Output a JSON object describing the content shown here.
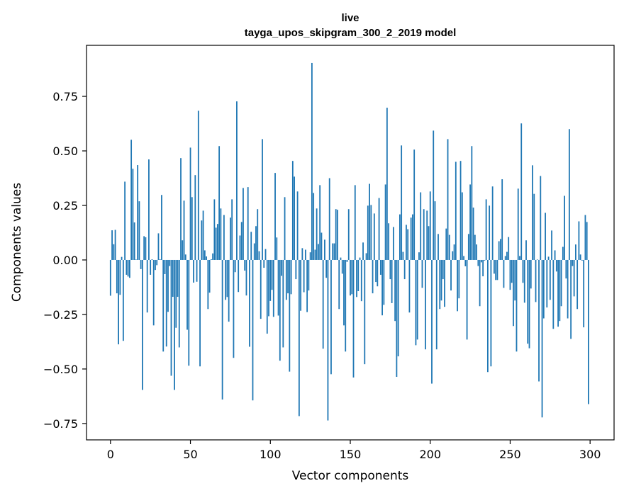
{
  "chart_data": {
    "type": "bar",
    "title": "live",
    "subtitle": "tayga_upos_skipgram_300_2_2019 model",
    "xlabel": "Vector components",
    "ylabel": "Components values",
    "xlim": [
      -15,
      315
    ],
    "ylim": [
      -0.825,
      0.984
    ],
    "xticks": [
      "0",
      "50",
      "100",
      "150",
      "200",
      "250",
      "300"
    ],
    "yticks": [
      "−0.75",
      "−0.50",
      "−0.25",
      "0.00",
      "0.25",
      "0.50",
      "0.75"
    ],
    "grid": false,
    "color": "#1f77b4",
    "values": [
      -0.164,
      0.136,
      0.072,
      0.138,
      -0.153,
      -0.387,
      -0.16,
      0.014,
      -0.371,
      0.359,
      -0.068,
      -0.076,
      -0.082,
      0.551,
      0.418,
      0.172,
      0.002,
      0.435,
      0.269,
      -0.042,
      -0.596,
      0.109,
      0.104,
      -0.241,
      0.461,
      -0.068,
      0.003,
      -0.3,
      -0.046,
      -0.024,
      0.122,
      0.003,
      0.298,
      -0.42,
      -0.065,
      -0.397,
      -0.238,
      -0.028,
      -0.531,
      -0.169,
      -0.596,
      -0.311,
      -0.169,
      -0.401,
      0.467,
      0.09,
      0.272,
      0.025,
      -0.32,
      -0.485,
      0.515,
      0.288,
      -0.104,
      0.389,
      -0.1,
      0.684,
      -0.488,
      0.181,
      0.226,
      0.044,
      0.016,
      -0.225,
      -0.15,
      0.003,
      0.03,
      0.278,
      0.148,
      0.165,
      0.522,
      0.236,
      -0.64,
      0.206,
      -0.183,
      -0.17,
      -0.283,
      0.194,
      0.278,
      -0.449,
      -0.056,
      0.727,
      -0.147,
      0.112,
      0.174,
      0.33,
      -0.049,
      -0.163,
      0.334,
      -0.398,
      0.129,
      -0.644,
      0.076,
      0.155,
      0.233,
      0.04,
      -0.27,
      0.554,
      -0.036,
      0.05,
      -0.338,
      -0.258,
      -0.188,
      -0.137,
      -0.261,
      0.399,
      0.103,
      -0.255,
      -0.462,
      -0.073,
      -0.401,
      0.288,
      -0.183,
      -0.153,
      -0.512,
      -0.157,
      0.454,
      0.382,
      -0.088,
      0.314,
      -0.716,
      -0.233,
      0.054,
      -0.148,
      0.047,
      -0.239,
      -0.14,
      0.035,
      0.903,
      0.307,
      0.047,
      0.236,
      0.073,
      0.343,
      0.125,
      -0.407,
      0.093,
      -0.082,
      -0.736,
      0.375,
      -0.524,
      0.076,
      0.076,
      0.233,
      0.23,
      -0.225,
      0.011,
      -0.063,
      -0.3,
      -0.42,
      -0.009,
      0.233,
      -0.163,
      -0.157,
      -0.539,
      0.343,
      -0.17,
      -0.143,
      0.011,
      -0.189,
      0.08,
      -0.478,
      0.031,
      0.249,
      0.349,
      0.252,
      -0.153,
      0.213,
      -0.101,
      -0.121,
      0.284,
      -0.068,
      -0.254,
      -0.206,
      0.346,
      0.698,
      0.168,
      -0.088,
      -0.198,
      0.151,
      -0.28,
      -0.536,
      -0.442,
      0.209,
      0.525,
      0.037,
      -0.088,
      0.161,
      0.141,
      -0.241,
      0.194,
      0.209,
      0.506,
      -0.391,
      -0.365,
      0.035,
      0.31,
      -0.128,
      0.233,
      -0.41,
      0.226,
      0.155,
      0.314,
      -0.567,
      0.593,
      0.269,
      -0.41,
      0.119,
      -0.225,
      -0.186,
      -0.088,
      -0.215,
      0.144,
      0.554,
      0.115,
      -0.14,
      0.04,
      0.071,
      0.45,
      -0.235,
      -0.176,
      0.454,
      0.31,
      0.018,
      -0.029,
      -0.365,
      0.119,
      0.346,
      0.522,
      0.24,
      0.115,
      0.071,
      -0.028,
      -0.212,
      -0.011,
      -0.075,
      -0.003,
      0.278,
      -0.514,
      0.249,
      -0.488,
      0.337,
      -0.063,
      -0.092,
      -0.092,
      0.086,
      0.096,
      0.37,
      -0.128,
      0.018,
      0.037,
      0.105,
      -0.137,
      -0.105,
      -0.303,
      -0.186,
      -0.42,
      0.327,
      0.018,
      0.626,
      -0.105,
      -0.196,
      0.09,
      -0.384,
      -0.405,
      -0.131,
      0.434,
      0.303,
      -0.193,
      0.002,
      -0.557,
      0.385,
      -0.722,
      -0.268,
      0.216,
      -0.218,
      0.015,
      -0.183,
      0.135,
      -0.316,
      0.044,
      -0.053,
      -0.306,
      -0.28,
      -0.212,
      0.06,
      0.294,
      -0.085,
      -0.268,
      0.6,
      -0.362,
      -0.028,
      -0.167,
      0.071,
      -0.225,
      0.177,
      0.025,
      -0.003,
      -0.309,
      0.206,
      0.174,
      -0.661
    ]
  }
}
